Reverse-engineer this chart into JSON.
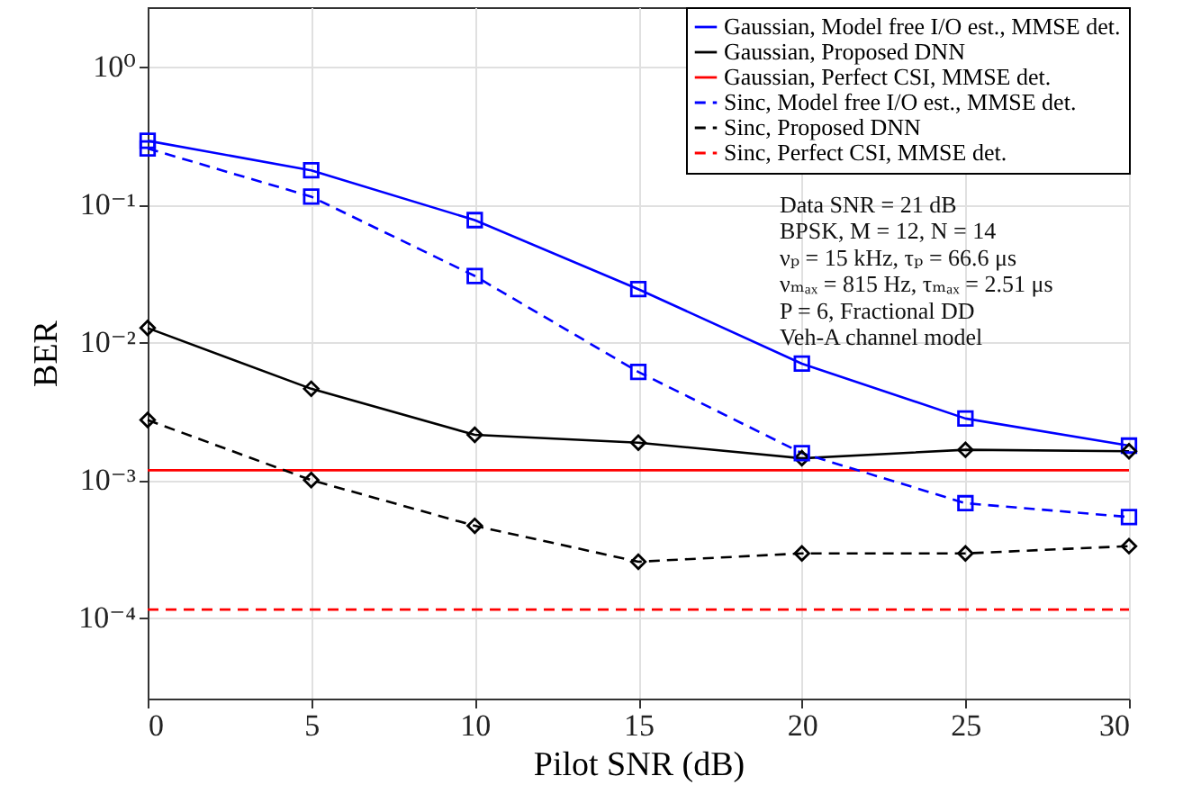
{
  "chart_data": {
    "type": "line",
    "xlabel": "Pilot SNR (dB)",
    "ylabel": "BER",
    "log": "y",
    "x": [
      0,
      5,
      10,
      15,
      20,
      25,
      30
    ],
    "xlim": [
      0,
      30
    ],
    "xticks": [
      0,
      5,
      10,
      15,
      20,
      25,
      30
    ],
    "ylim": [
      2.6e-05,
      2.7
    ],
    "yticks": [
      {
        "value": 0.0001,
        "label": "10⁻⁴"
      },
      {
        "value": 0.001,
        "label": "10⁻³"
      },
      {
        "value": 0.01,
        "label": "10⁻²"
      },
      {
        "value": 0.1,
        "label": "10⁻¹"
      },
      {
        "value": 1,
        "label": "10⁰"
      }
    ],
    "grid": true,
    "legend": "top right",
    "series": [
      {
        "name": "Gaussian, Model free I/O est., MMSE det.",
        "color": "#0000ff",
        "marker": "square",
        "line_style": "solid",
        "values": [
          0.29,
          0.177,
          0.077,
          0.0243,
          0.007,
          0.0028,
          0.00178
        ]
      },
      {
        "name": "Gaussian, Proposed DNN",
        "color": "#000000",
        "marker": "diamond",
        "line_style": "solid",
        "values": [
          0.0127,
          0.0046,
          0.00213,
          0.00187,
          0.00144,
          0.00166,
          0.00162
        ]
      },
      {
        "name": "Gaussian, Perfect CSI, MMSE det.",
        "color": "#ff0000",
        "marker": "none",
        "line_style": "solid",
        "values": [
          0.00118,
          0.00118,
          0.00118,
          0.00118,
          0.00118,
          0.00118,
          0.00118
        ]
      },
      {
        "name": "Sinc, Model free I/O est., MMSE det.",
        "color": "#0000ff",
        "marker": "square",
        "line_style": "dashed",
        "values": [
          0.255,
          0.114,
          0.0303,
          0.0061,
          0.00157,
          0.00068,
          0.00054
        ]
      },
      {
        "name": "Sinc, Proposed DNN",
        "color": "#000000",
        "marker": "diamond",
        "line_style": "dashed",
        "values": [
          0.00273,
          0.001,
          0.000466,
          0.000256,
          0.000294,
          0.000294,
          0.000332
        ]
      },
      {
        "name": "Sinc, Perfect CSI, MMSE det.",
        "color": "#ff0000",
        "marker": "none",
        "line_style": "dashed",
        "values": [
          0.000115,
          0.000115,
          0.000115,
          0.000115,
          0.000115,
          0.000115,
          0.000115
        ]
      }
    ],
    "annotations": [
      "Data SNR = 21 dB",
      "BPSK,  M = 12, N = 14",
      "νₚ = 15 kHz, τₚ = 66.6 μs",
      "νₘₐₓ = 815 Hz, τₘₐₓ = 2.51 μs",
      "P = 6, Fractional DD",
      "Veh-A channel model"
    ]
  }
}
